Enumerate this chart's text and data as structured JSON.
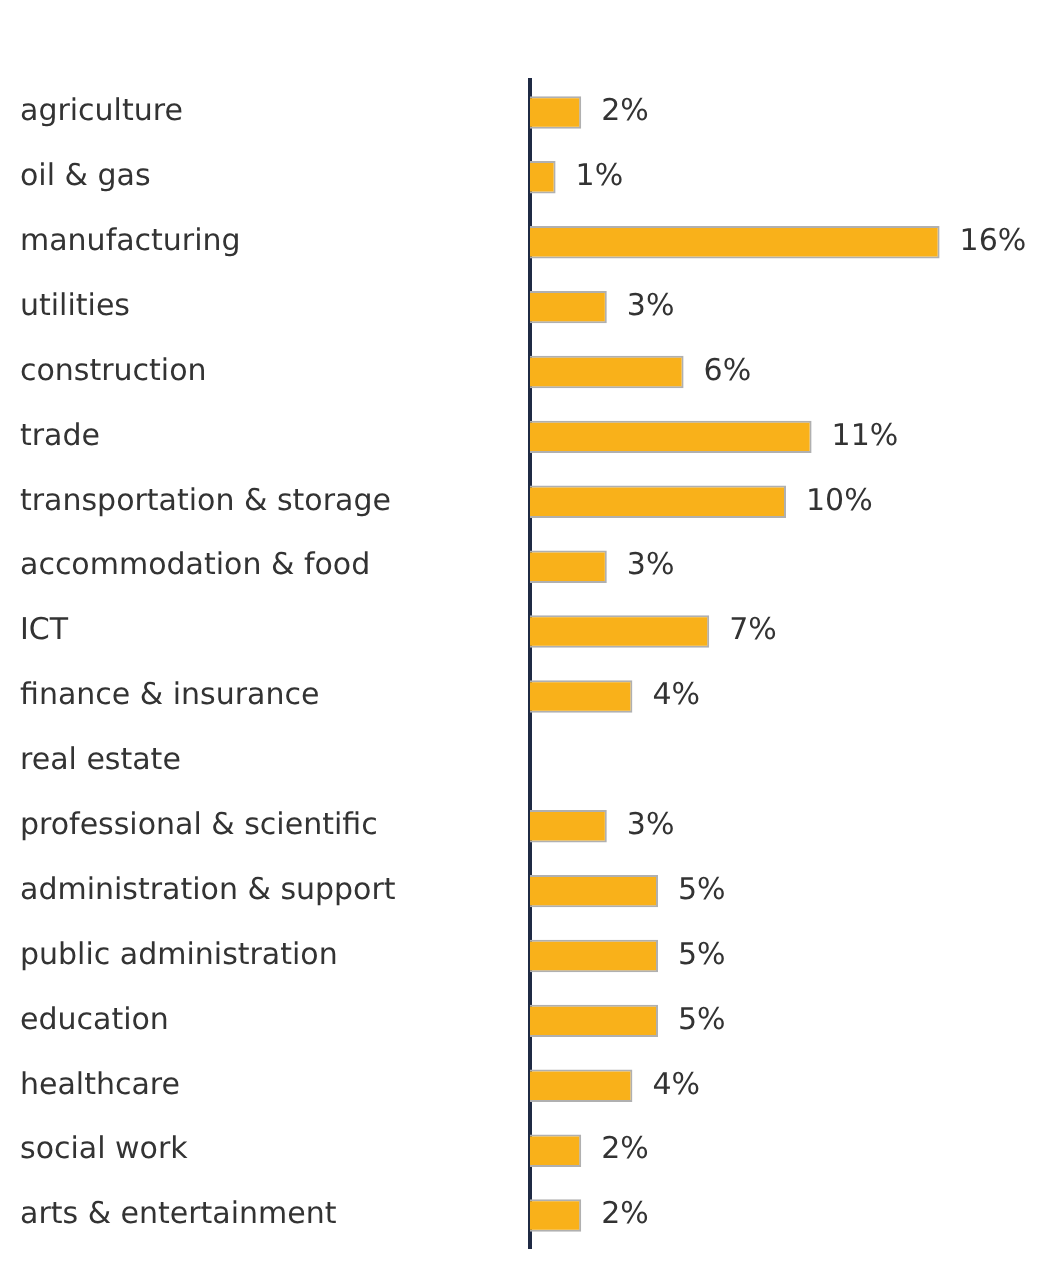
{
  "chart_data": {
    "type": "bar",
    "orientation": "horizontal",
    "categories": [
      "agriculture",
      "oil & gas",
      "manufacturing",
      "utilities",
      "construction",
      "trade",
      "transportation & storage",
      "accommodation & food",
      "ICT",
      "finance & insurance",
      "real estate",
      "professional & scientific",
      "administration & support",
      "public administration",
      "education",
      "healthcare",
      "social work",
      "arts & entertainment"
    ],
    "values": [
      2,
      1,
      16,
      3,
      6,
      11,
      10,
      3,
      7,
      4,
      null,
      3,
      5,
      5,
      5,
      4,
      2,
      2
    ],
    "value_labels": [
      "2%",
      "1%",
      "16%",
      "3%",
      "6%",
      "11%",
      "10%",
      "3%",
      "7%",
      "4%",
      null,
      "3%",
      "5%",
      "5%",
      "5%",
      "4%",
      "2%",
      "2%"
    ],
    "color": "#f9b11a",
    "grid": false,
    "legend": false
  }
}
